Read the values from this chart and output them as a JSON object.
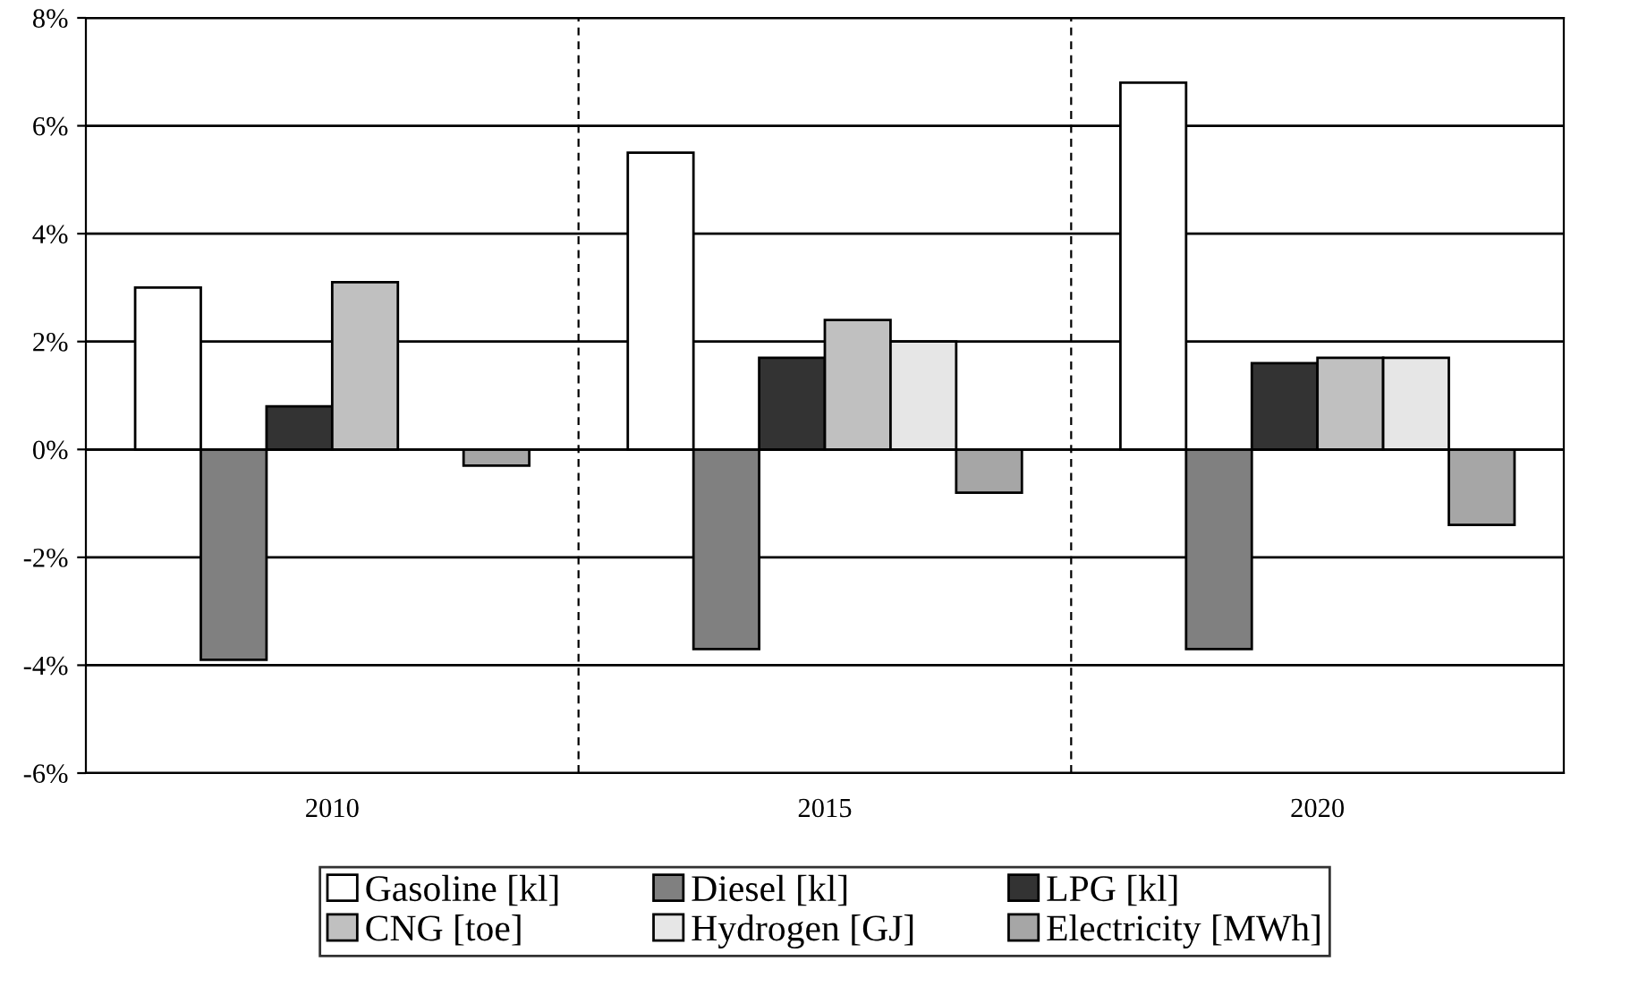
{
  "chart_data": {
    "type": "bar",
    "categories": [
      "2010",
      "2015",
      "2020"
    ],
    "series": [
      {
        "name": "Gasoline [kl]",
        "color": "#ffffff",
        "values": [
          3.0,
          5.5,
          6.8
        ]
      },
      {
        "name": "Diesel [kl]",
        "color": "#808080",
        "values": [
          -3.9,
          -3.7,
          -3.7
        ]
      },
      {
        "name": "LPG [kl]",
        "color": "#333333",
        "values": [
          0.8,
          1.7,
          1.6
        ]
      },
      {
        "name": "CNG [toe]",
        "color": "#c0c0c0",
        "values": [
          3.1,
          2.4,
          1.7
        ]
      },
      {
        "name": "Hydrogen [GJ]",
        "color": "#e6e6e6",
        "values": [
          null,
          2.0,
          1.7
        ]
      },
      {
        "name": "Electricity [MWh]",
        "color": "#a6a6a6",
        "values": [
          -0.3,
          -0.8,
          -1.4
        ]
      }
    ],
    "ylim": [
      -6,
      8
    ],
    "yticks": [
      {
        "value": -6,
        "label": "-6%"
      },
      {
        "value": -4,
        "label": "-4%"
      },
      {
        "value": -2,
        "label": "-2%"
      },
      {
        "value": 0,
        "label": "0%"
      },
      {
        "value": 2,
        "label": "2%"
      },
      {
        "value": 4,
        "label": "4%"
      },
      {
        "value": 6,
        "label": "6%"
      },
      {
        "value": 8,
        "label": "8%"
      }
    ],
    "grid": true,
    "legend": "bottom"
  }
}
